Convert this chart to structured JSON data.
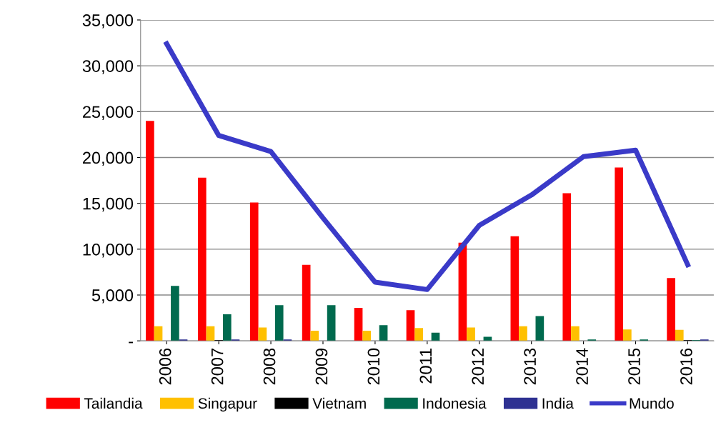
{
  "chart_data": {
    "type": "bar",
    "categories": [
      "2006",
      "2007",
      "2008",
      "2009",
      "2010",
      "2011",
      "2012",
      "2013",
      "2014",
      "2015",
      "2016"
    ],
    "series": [
      {
        "name": "Tailandia",
        "color": "#ff0000",
        "values": [
          24000,
          17800,
          15100,
          8300,
          3600,
          3350,
          10700,
          11400,
          16100,
          18900,
          6850
        ]
      },
      {
        "name": "Singapur",
        "color": "#ffc000",
        "values": [
          1600,
          1600,
          1450,
          1100,
          1100,
          1400,
          1450,
          1600,
          1600,
          1250,
          1200
        ]
      },
      {
        "name": "Vietnam",
        "color": "#000000",
        "values": [
          0,
          100,
          0,
          0,
          0,
          0,
          0,
          0,
          0,
          0,
          100
        ]
      },
      {
        "name": "Indonesia",
        "color": "#006a4e",
        "values": [
          6000,
          2900,
          3900,
          3900,
          1700,
          900,
          450,
          2700,
          150,
          150,
          100
        ]
      },
      {
        "name": "India",
        "color": "#2e3192",
        "values": [
          150,
          150,
          150,
          0,
          0,
          0,
          0,
          0,
          0,
          0,
          150
        ]
      },
      {
        "name": "Mundo",
        "color": "#3a3ac8",
        "type": "line",
        "values": [
          32400,
          22400,
          20650,
          13400,
          6400,
          5600,
          12600,
          15900,
          20100,
          20800,
          8300
        ]
      }
    ],
    "ylim": [
      0,
      35000
    ],
    "yticks": [
      {
        "value": 0,
        "label": "-"
      },
      {
        "value": 5000,
        "label": "5,000"
      },
      {
        "value": 10000,
        "label": "10,000"
      },
      {
        "value": 15000,
        "label": "15,000"
      },
      {
        "value": 20000,
        "label": "20,000"
      },
      {
        "value": 25000,
        "label": "25,000"
      },
      {
        "value": 30000,
        "label": "30,000"
      },
      {
        "value": 35000,
        "label": "35,000"
      }
    ],
    "grid": "y",
    "legend": "bottom",
    "marker": "none",
    "line_style": "solid"
  }
}
